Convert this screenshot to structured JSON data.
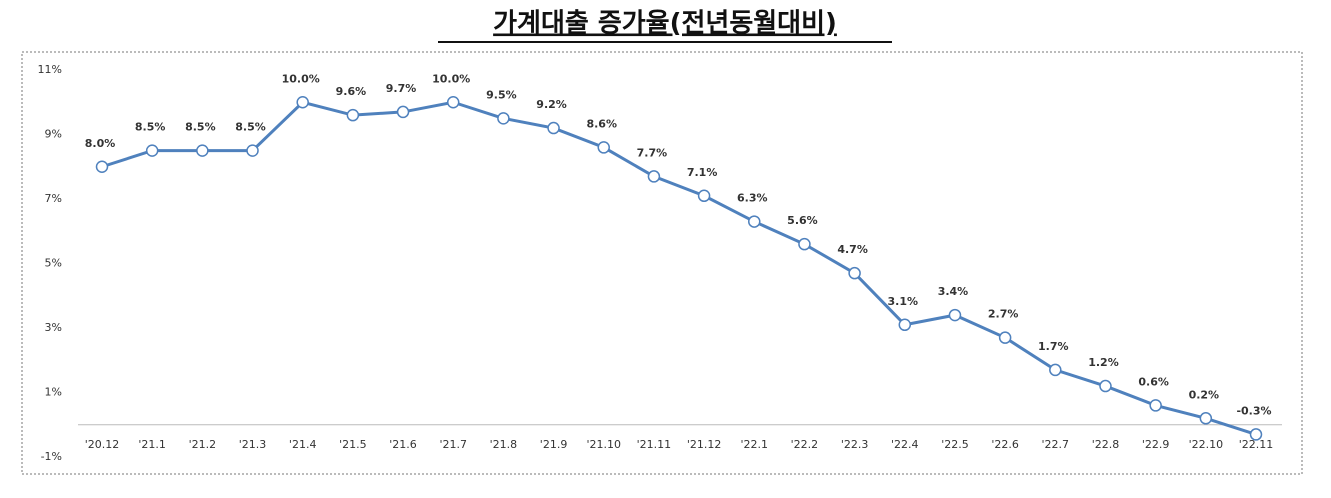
{
  "chart_data": {
    "type": "line",
    "title": "가계대출 증가율(전년동월대비)",
    "categories": [
      "'20.12",
      "'21.1",
      "'21.2",
      "'21.3",
      "'21.4",
      "'21.5",
      "'21.6",
      "'21.7",
      "'21.8",
      "'21.9",
      "'21.10",
      "'21.11",
      "'21.12",
      "'22.1",
      "'22.2",
      "'22.3",
      "'22.4",
      "'22.5",
      "'22.6",
      "'22.7",
      "'22.8",
      "'22.9",
      "'22.10",
      "'22.11"
    ],
    "values": [
      8.0,
      8.5,
      8.5,
      8.5,
      10.0,
      9.6,
      9.7,
      10.0,
      9.5,
      9.2,
      8.6,
      7.7,
      7.1,
      6.3,
      5.6,
      4.7,
      3.1,
      3.4,
      2.7,
      1.7,
      1.2,
      0.6,
      0.2,
      -0.3
    ],
    "value_labels": [
      "8.0%",
      "8.5%",
      "8.5%",
      "8.5%",
      "10.0%",
      "9.6%",
      "9.7%",
      "10.0%",
      "9.5%",
      "9.2%",
      "8.6%",
      "7.7%",
      "7.1%",
      "6.3%",
      "5.6%",
      "4.7%",
      "3.1%",
      "3.4%",
      "2.7%",
      "1.7%",
      "1.2%",
      "0.6%",
      "0.2%",
      "-0.3%"
    ],
    "color": "#4f81bd",
    "ylim": [
      -1,
      11
    ],
    "yticks": [
      {
        "value": -1,
        "label": "-1%"
      },
      {
        "value": 1,
        "label": "1%"
      },
      {
        "value": 3,
        "label": "3%"
      },
      {
        "value": 5,
        "label": "5%"
      },
      {
        "value": 7,
        "label": "7%"
      },
      {
        "value": 9,
        "label": "9%"
      },
      {
        "value": 11,
        "label": "11%"
      }
    ]
  }
}
